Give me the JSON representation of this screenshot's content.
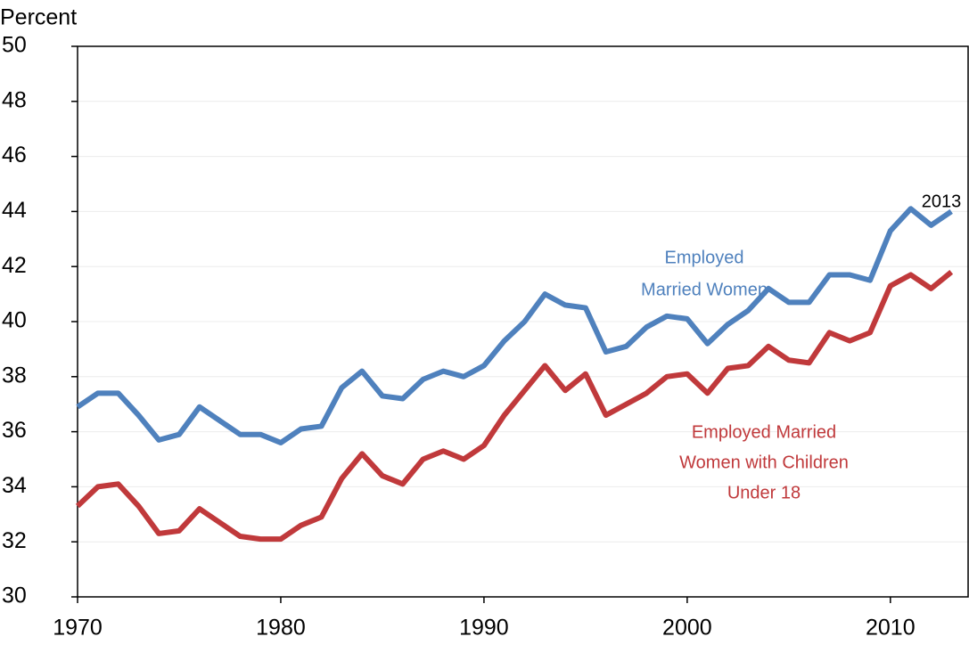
{
  "chart_data": {
    "type": "line",
    "y_label": "Percent",
    "annotation": "2013",
    "x": [
      1970,
      1971,
      1972,
      1973,
      1974,
      1975,
      1976,
      1977,
      1978,
      1979,
      1980,
      1981,
      1982,
      1983,
      1984,
      1985,
      1986,
      1987,
      1988,
      1989,
      1990,
      1991,
      1992,
      1993,
      1994,
      1995,
      1996,
      1997,
      1998,
      1999,
      2000,
      2001,
      2002,
      2003,
      2004,
      2005,
      2006,
      2007,
      2008,
      2009,
      2010,
      2011,
      2012,
      2013
    ],
    "xlim": [
      1970,
      2014
    ],
    "xticks": [
      1970,
      1980,
      1990,
      2000,
      2010
    ],
    "ylim": [
      30,
      50
    ],
    "yticks": [
      30,
      32,
      34,
      36,
      38,
      40,
      42,
      44,
      46,
      48,
      50
    ],
    "grid": true,
    "series": [
      {
        "name": [
          "Employed",
          "Married Women"
        ],
        "color": "#4f81bd",
        "values": [
          36.9,
          37.4,
          37.4,
          36.6,
          35.7,
          35.9,
          36.9,
          36.4,
          35.9,
          35.9,
          35.6,
          36.1,
          36.2,
          37.6,
          38.2,
          37.3,
          37.2,
          37.9,
          38.2,
          38.0,
          38.4,
          39.3,
          40.0,
          41.0,
          40.6,
          40.5,
          38.9,
          39.1,
          39.8,
          40.2,
          40.1,
          39.2,
          39.9,
          40.4,
          41.2,
          40.7,
          40.7,
          41.7,
          41.7,
          41.5,
          43.3,
          44.1,
          43.5,
          44.0
        ]
      },
      {
        "name": [
          "Employed Married",
          "Women with Children",
          "Under 18"
        ],
        "color": "#c0393b",
        "values": [
          33.3,
          34.0,
          34.1,
          33.3,
          32.3,
          32.4,
          33.2,
          32.7,
          32.2,
          32.1,
          32.1,
          32.6,
          32.9,
          34.3,
          35.2,
          34.4,
          34.1,
          35.0,
          35.3,
          35.0,
          35.5,
          36.6,
          37.5,
          38.4,
          37.5,
          38.1,
          36.6,
          37.0,
          37.4,
          38.0,
          38.1,
          37.4,
          38.3,
          38.4,
          39.1,
          38.6,
          38.5,
          39.6,
          39.3,
          39.6,
          41.3,
          41.7,
          41.2,
          41.8
        ]
      }
    ]
  }
}
